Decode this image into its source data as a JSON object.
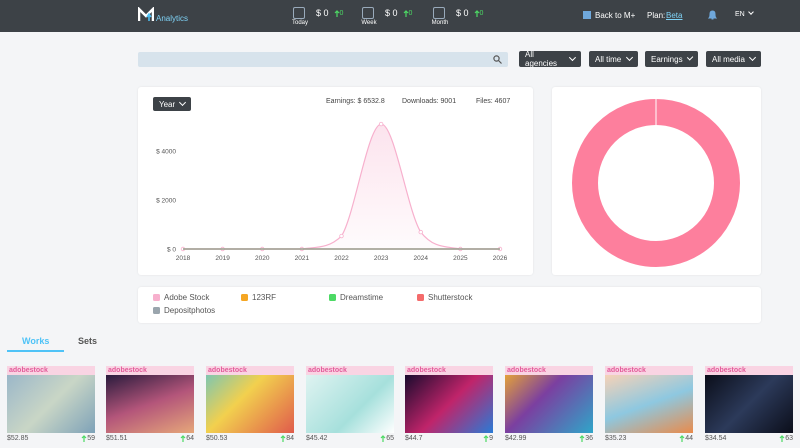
{
  "nav": {
    "brand": "Analytics",
    "stats": [
      {
        "label": "Today",
        "value": "$ 0",
        "change": "0"
      },
      {
        "label": "Week",
        "value": "$ 0",
        "change": "0"
      },
      {
        "label": "Month",
        "value": "$ 0",
        "change": "0"
      }
    ],
    "back": "Back to M+",
    "plan_label": "Plan:",
    "plan": "Beta",
    "lang": "EN"
  },
  "filters": [
    "All agencies",
    "All time",
    "Earnings",
    "All media"
  ],
  "chart_header": {
    "period": "Year",
    "earnings": "Earnings: $ 6532.8",
    "downloads": "Downloads: 9001",
    "files": "Files: 4607"
  },
  "chart_data": [
    {
      "type": "line",
      "x": [
        2018,
        2019,
        2020,
        2021,
        2022,
        2023,
        2024,
        2025,
        2026
      ],
      "xlim": [
        2018,
        2026
      ],
      "xticks": [
        2018,
        2019,
        2020,
        2021,
        2022,
        2023,
        2024,
        2025,
        2026
      ],
      "ylim": [
        0,
        5400
      ],
      "yticks": [
        {
          "value": 0,
          "label": "$ 0"
        },
        {
          "value": 2000,
          "label": "$ 2000"
        },
        {
          "value": 4000,
          "label": "$ 4000"
        }
      ],
      "grid": false,
      "series": [
        {
          "name": "Adobe Stock",
          "color": "#f7b0cd",
          "values": [
            0,
            0,
            0,
            0,
            530,
            5100,
            690,
            0,
            0
          ]
        },
        {
          "name": "123RF",
          "color": "#f5a623",
          "values": [
            0,
            0,
            0,
            0,
            0,
            0,
            0,
            0,
            0
          ]
        },
        {
          "name": "Dreamstime",
          "color": "#4cd964",
          "values": [
            0,
            0,
            0,
            0,
            0,
            0,
            0,
            0,
            0
          ]
        },
        {
          "name": "Shutterstock",
          "color": "#f46b6b",
          "values": [
            0,
            0,
            0,
            0,
            0,
            0,
            0,
            0,
            0
          ]
        },
        {
          "name": "Depositphotos",
          "color": "#9aa5ad",
          "values": [
            0,
            0,
            0,
            0,
            0,
            0,
            0,
            0,
            0
          ]
        }
      ]
    },
    {
      "type": "pie",
      "values": [
        100,
        0,
        0,
        0,
        0
      ],
      "colors": [
        "#fd7f9d",
        "#f5a623",
        "#4cd964",
        "#f46b6b",
        "#9aa5ad"
      ]
    }
  ],
  "tabs": [
    "Works",
    "Sets"
  ],
  "works": [
    {
      "agency": "adobestock",
      "price": "$52.85",
      "downloads": "59"
    },
    {
      "agency": "adobestock",
      "price": "$51.51",
      "downloads": "64"
    },
    {
      "agency": "adobestock",
      "price": "$50.53",
      "downloads": "84"
    },
    {
      "agency": "adobestock",
      "price": "$45.42",
      "downloads": "65"
    },
    {
      "agency": "adobestock",
      "price": "$44.7",
      "downloads": "9"
    },
    {
      "agency": "adobestock",
      "price": "$42.99",
      "downloads": "36"
    },
    {
      "agency": "adobestock",
      "price": "$35.23",
      "downloads": "44"
    },
    {
      "agency": "adobestock",
      "price": "$34.54",
      "downloads": "63"
    }
  ]
}
